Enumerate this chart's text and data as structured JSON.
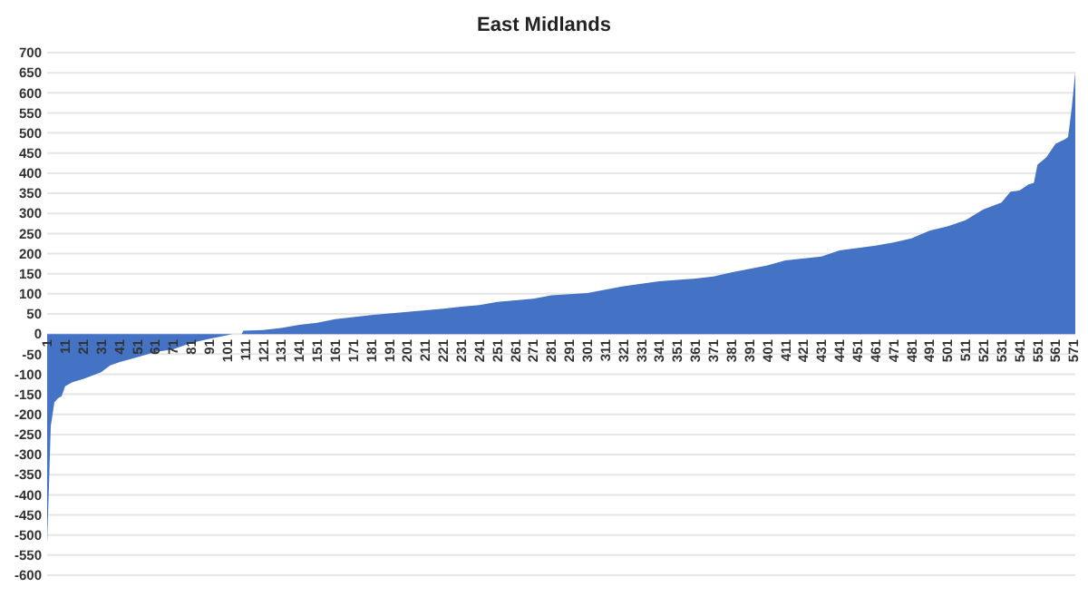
{
  "chart_data": {
    "type": "area",
    "title": "East Midlands",
    "x": [
      1,
      2,
      3,
      5,
      7,
      9,
      11,
      15,
      21,
      31,
      36,
      41,
      51,
      61,
      71,
      81,
      91,
      101,
      104,
      109,
      110,
      121,
      131,
      141,
      151,
      161,
      171,
      181,
      191,
      201,
      211,
      221,
      231,
      241,
      251,
      261,
      271,
      281,
      301,
      321,
      341,
      361,
      371,
      381,
      401,
      411,
      431,
      441,
      461,
      471,
      481,
      491,
      501,
      511,
      521,
      531,
      536,
      541,
      546,
      549,
      551,
      556,
      561,
      566,
      568,
      570,
      572
    ],
    "series": [
      {
        "color": "#4472c4",
        "values": [
          -520,
          -380,
          -230,
          -170,
          -160,
          -155,
          -130,
          -120,
          -112,
          -95,
          -78,
          -70,
          -58,
          -45,
          -38,
          -22,
          -12,
          -3,
          0,
          0,
          8,
          10,
          15,
          23,
          28,
          37,
          42,
          47,
          51,
          55,
          59,
          63,
          68,
          72,
          80,
          84,
          88,
          96,
          102,
          119,
          131,
          138,
          143,
          153,
          171,
          183,
          193,
          208,
          220,
          228,
          238,
          257,
          268,
          283,
          310,
          327,
          354,
          357,
          372,
          376,
          421,
          440,
          473,
          484,
          490,
          562,
          652
        ]
      }
    ],
    "xlim": [
      1,
      572
    ],
    "xticks": [
      1,
      11,
      21,
      31,
      41,
      51,
      61,
      71,
      81,
      91,
      101,
      111,
      121,
      131,
      141,
      151,
      161,
      171,
      181,
      191,
      201,
      211,
      221,
      231,
      241,
      251,
      261,
      271,
      281,
      291,
      301,
      311,
      321,
      331,
      341,
      351,
      361,
      371,
      381,
      391,
      401,
      411,
      421,
      431,
      441,
      451,
      461,
      471,
      481,
      491,
      501,
      511,
      521,
      531,
      541,
      551,
      561,
      571
    ],
    "ylim": [
      -600,
      700
    ],
    "yticks": [
      -600,
      -550,
      -500,
      -450,
      -400,
      -350,
      -300,
      -250,
      -200,
      -150,
      -100,
      -50,
      0,
      50,
      100,
      150,
      200,
      250,
      300,
      350,
      400,
      450,
      500,
      550,
      600,
      650,
      700
    ],
    "grid": "y"
  }
}
